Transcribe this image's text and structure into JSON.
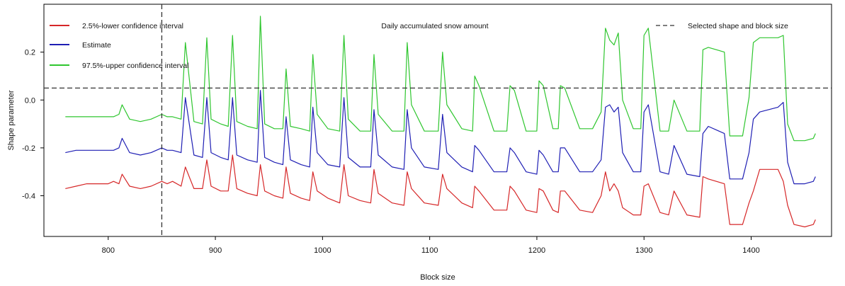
{
  "chart_data": {
    "type": "line",
    "title": "Daily accumulated snow amount",
    "xlabel": "Block size",
    "ylabel": "Shape parameter",
    "xlim": [
      740,
      1475
    ],
    "ylim": [
      -0.57,
      0.4
    ],
    "x_ticks": [
      800,
      900,
      1000,
      1100,
      1200,
      1300,
      1400
    ],
    "x_tick_labels": [
      "800",
      "900",
      "1000",
      "1100",
      "1200",
      "1300",
      "1400"
    ],
    "y_ticks": [
      -0.4,
      -0.2,
      0.0,
      0.2
    ],
    "y_tick_labels": [
      "-0.4",
      "-0.2",
      "0.0",
      "0.2"
    ],
    "grid": false,
    "legend_placement": "top-left",
    "series": [
      {
        "name": "2.5%-lower confidence interval",
        "color": "#d62728",
        "x": [
          760,
          770,
          780,
          790,
          800,
          805,
          810,
          813,
          820,
          830,
          840,
          850,
          855,
          860,
          868,
          872,
          880,
          888,
          892,
          896,
          905,
          912,
          916,
          920,
          930,
          939,
          942,
          946,
          955,
          963,
          966,
          970,
          980,
          988,
          991,
          995,
          1005,
          1016,
          1020,
          1024,
          1035,
          1045,
          1048,
          1052,
          1065,
          1076,
          1079,
          1083,
          1095,
          1108,
          1112,
          1116,
          1130,
          1140,
          1142,
          1146,
          1160,
          1172,
          1175,
          1179,
          1190,
          1200,
          1202,
          1206,
          1215,
          1220,
          1222,
          1226,
          1240,
          1252,
          1260,
          1264,
          1268,
          1272,
          1276,
          1280,
          1290,
          1297,
          1300,
          1304,
          1315,
          1323,
          1328,
          1340,
          1352,
          1355,
          1360,
          1375,
          1380,
          1392,
          1398,
          1402,
          1408,
          1425,
          1430,
          1434,
          1440,
          1450,
          1458,
          1460
        ],
        "y": [
          -0.37,
          -0.36,
          -0.35,
          -0.35,
          -0.35,
          -0.34,
          -0.35,
          -0.31,
          -0.36,
          -0.37,
          -0.36,
          -0.34,
          -0.35,
          -0.34,
          -0.36,
          -0.28,
          -0.37,
          -0.37,
          -0.25,
          -0.36,
          -0.38,
          -0.38,
          -0.23,
          -0.37,
          -0.39,
          -0.4,
          -0.27,
          -0.38,
          -0.4,
          -0.41,
          -0.28,
          -0.39,
          -0.41,
          -0.42,
          -0.3,
          -0.38,
          -0.41,
          -0.43,
          -0.27,
          -0.4,
          -0.42,
          -0.43,
          -0.29,
          -0.39,
          -0.43,
          -0.44,
          -0.3,
          -0.37,
          -0.43,
          -0.44,
          -0.31,
          -0.37,
          -0.43,
          -0.45,
          -0.36,
          -0.38,
          -0.46,
          -0.46,
          -0.36,
          -0.38,
          -0.46,
          -0.47,
          -0.37,
          -0.38,
          -0.46,
          -0.47,
          -0.38,
          -0.38,
          -0.46,
          -0.47,
          -0.4,
          -0.3,
          -0.38,
          -0.35,
          -0.38,
          -0.45,
          -0.48,
          -0.48,
          -0.36,
          -0.35,
          -0.47,
          -0.48,
          -0.38,
          -0.48,
          -0.49,
          -0.32,
          -0.33,
          -0.35,
          -0.52,
          -0.52,
          -0.43,
          -0.38,
          -0.29,
          -0.29,
          -0.34,
          -0.44,
          -0.52,
          -0.53,
          -0.52,
          -0.5
        ]
      },
      {
        "name": "Estimate",
        "color": "#1f1fb4",
        "x": [
          760,
          770,
          780,
          790,
          800,
          805,
          810,
          813,
          820,
          830,
          840,
          850,
          855,
          860,
          868,
          872,
          880,
          888,
          892,
          896,
          905,
          912,
          916,
          920,
          930,
          939,
          942,
          946,
          955,
          963,
          966,
          970,
          980,
          988,
          991,
          995,
          1005,
          1016,
          1020,
          1024,
          1035,
          1045,
          1048,
          1052,
          1065,
          1076,
          1079,
          1083,
          1095,
          1108,
          1112,
          1116,
          1130,
          1140,
          1142,
          1146,
          1160,
          1172,
          1175,
          1179,
          1190,
          1200,
          1202,
          1206,
          1215,
          1220,
          1222,
          1226,
          1240,
          1252,
          1260,
          1264,
          1268,
          1272,
          1276,
          1280,
          1290,
          1297,
          1300,
          1304,
          1315,
          1323,
          1328,
          1340,
          1352,
          1355,
          1360,
          1375,
          1380,
          1392,
          1398,
          1402,
          1408,
          1425,
          1430,
          1434,
          1440,
          1450,
          1458,
          1460
        ],
        "y": [
          -0.22,
          -0.21,
          -0.21,
          -0.21,
          -0.21,
          -0.21,
          -0.2,
          -0.16,
          -0.22,
          -0.23,
          -0.22,
          -0.2,
          -0.21,
          -0.21,
          -0.22,
          0.01,
          -0.23,
          -0.24,
          0.01,
          -0.22,
          -0.24,
          -0.25,
          0.01,
          -0.23,
          -0.25,
          -0.26,
          0.04,
          -0.24,
          -0.26,
          -0.27,
          -0.07,
          -0.25,
          -0.27,
          -0.28,
          -0.03,
          -0.22,
          -0.27,
          -0.28,
          0.01,
          -0.24,
          -0.28,
          -0.28,
          -0.04,
          -0.23,
          -0.28,
          -0.29,
          -0.04,
          -0.2,
          -0.28,
          -0.29,
          -0.06,
          -0.22,
          -0.28,
          -0.3,
          -0.19,
          -0.21,
          -0.3,
          -0.3,
          -0.2,
          -0.22,
          -0.3,
          -0.31,
          -0.21,
          -0.23,
          -0.3,
          -0.3,
          -0.2,
          -0.2,
          -0.3,
          -0.3,
          -0.25,
          -0.03,
          -0.02,
          -0.05,
          -0.03,
          -0.22,
          -0.3,
          -0.3,
          -0.05,
          -0.02,
          -0.3,
          -0.31,
          -0.19,
          -0.31,
          -0.32,
          -0.14,
          -0.11,
          -0.14,
          -0.33,
          -0.33,
          -0.22,
          -0.08,
          -0.05,
          -0.03,
          -0.01,
          -0.26,
          -0.35,
          -0.35,
          -0.34,
          -0.32
        ]
      },
      {
        "name": "97.5%-upper confidence interval",
        "color": "#2fc62f",
        "x": [
          760,
          770,
          780,
          790,
          800,
          805,
          810,
          813,
          820,
          830,
          840,
          850,
          855,
          860,
          868,
          872,
          880,
          888,
          892,
          896,
          905,
          912,
          916,
          920,
          930,
          939,
          942,
          946,
          955,
          963,
          966,
          970,
          980,
          988,
          991,
          995,
          1005,
          1016,
          1020,
          1024,
          1035,
          1045,
          1048,
          1052,
          1065,
          1076,
          1079,
          1083,
          1095,
          1108,
          1112,
          1116,
          1130,
          1140,
          1142,
          1146,
          1160,
          1172,
          1175,
          1179,
          1190,
          1200,
          1202,
          1206,
          1215,
          1220,
          1222,
          1226,
          1240,
          1252,
          1260,
          1264,
          1268,
          1272,
          1276,
          1280,
          1290,
          1297,
          1300,
          1304,
          1315,
          1323,
          1328,
          1340,
          1352,
          1355,
          1360,
          1375,
          1380,
          1392,
          1398,
          1402,
          1408,
          1425,
          1430,
          1434,
          1440,
          1450,
          1458,
          1460
        ],
        "y": [
          -0.07,
          -0.07,
          -0.07,
          -0.07,
          -0.07,
          -0.07,
          -0.06,
          -0.02,
          -0.08,
          -0.09,
          -0.08,
          -0.06,
          -0.07,
          -0.07,
          -0.08,
          0.24,
          -0.09,
          -0.1,
          0.26,
          -0.08,
          -0.1,
          -0.11,
          0.27,
          -0.09,
          -0.11,
          -0.12,
          0.35,
          -0.1,
          -0.12,
          -0.12,
          0.13,
          -0.11,
          -0.12,
          -0.13,
          0.19,
          -0.06,
          -0.12,
          -0.13,
          0.27,
          -0.08,
          -0.13,
          -0.13,
          0.19,
          -0.06,
          -0.13,
          -0.13,
          0.24,
          -0.02,
          -0.13,
          -0.13,
          0.2,
          -0.02,
          -0.12,
          -0.13,
          0.1,
          0.06,
          -0.13,
          -0.13,
          0.06,
          0.04,
          -0.13,
          -0.13,
          0.08,
          0.06,
          -0.12,
          -0.12,
          0.06,
          0.05,
          -0.12,
          -0.12,
          -0.05,
          0.3,
          0.25,
          0.23,
          0.28,
          0.0,
          -0.12,
          -0.12,
          0.27,
          0.3,
          -0.13,
          -0.13,
          0.0,
          -0.13,
          -0.13,
          0.21,
          0.22,
          0.2,
          -0.15,
          -0.15,
          0.01,
          0.24,
          0.26,
          0.26,
          0.27,
          -0.1,
          -0.17,
          -0.17,
          -0.16,
          -0.14
        ]
      }
    ],
    "reference_lines": {
      "name": "Selected shape and block size",
      "color": "#333333",
      "vertical_x": 850,
      "horizontal_y": 0.05
    }
  }
}
